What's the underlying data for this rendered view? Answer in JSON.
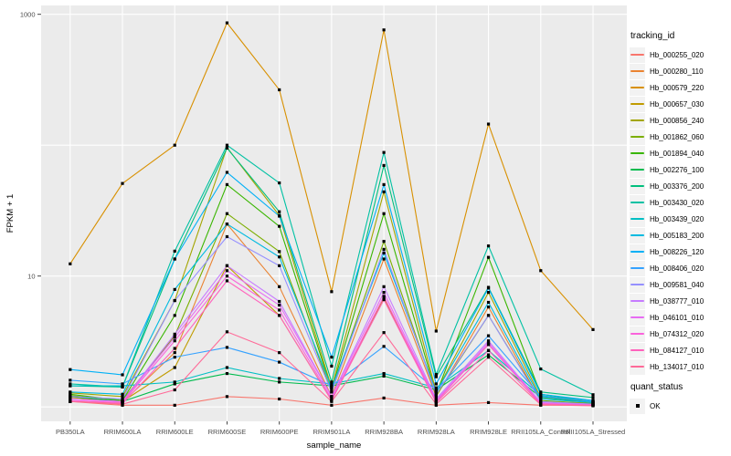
{
  "figure": {
    "panel_background": "#EBEBEB",
    "gridline_color": "#FFFFFF",
    "tick_color": "#333333",
    "tick_label_color": "#4D4D4D",
    "axis_title_color": "#000000",
    "point_color": "#000000"
  },
  "axes": {
    "x_title": "sample_name",
    "y_title": "FPKM + 1"
  },
  "legend": {
    "tracking_title": "tracking_id",
    "quant_title": "quant_status",
    "quant_ok_label": "OK"
  },
  "chart_data": {
    "type": "line",
    "title": "",
    "xlabel": "sample_name",
    "ylabel": "FPKM + 1",
    "yscale": "log10",
    "ylim": [
      0.8,
      1170
    ],
    "y_tick_labels": [
      "1000",
      "10"
    ],
    "y_tick_values": [
      1000,
      10
    ],
    "y_gridline_values": [
      1,
      10,
      100,
      1000
    ],
    "grid": true,
    "legend_position": "right",
    "point_marker": "black-square",
    "quant_status": "OK",
    "categories": [
      "PB350LA",
      "RRIM600LA",
      "RRIM600LE",
      "RRIM600SE",
      "RRIM600PE",
      "RRIM901LA",
      "RRIM928BA",
      "RRIM928LA",
      "RRIM928LE",
      "RRII105LA_Control",
      "RRII105LA_Stressed"
    ],
    "series": [
      {
        "name": "Hb_000255_020",
        "color": "#F8766D",
        "values": [
          1.1,
          1.03,
          1.03,
          1.2,
          1.15,
          1.03,
          1.17,
          1.03,
          1.08,
          1.03,
          1.03
        ]
      },
      {
        "name": "Hb_000280_110",
        "color": "#EA8331",
        "values": [
          1.1,
          1.08,
          2.6,
          25,
          8.3,
          1.2,
          13.5,
          1.2,
          5.8,
          1.1,
          1.07
        ]
      },
      {
        "name": "Hb_000579_220",
        "color": "#D89000",
        "values": [
          12.4,
          51,
          100,
          860,
          265,
          7.6,
          760,
          3.8,
          145,
          11,
          3.9
        ]
      },
      {
        "name": "Hb_000657_030",
        "color": "#C09B00",
        "values": [
          1.18,
          1.1,
          2.0,
          12,
          5.0,
          1.12,
          6.8,
          1.1,
          3.0,
          1.06,
          1.04
        ]
      },
      {
        "name": "Hb_000856_240",
        "color": "#A3A500",
        "values": [
          1.28,
          1.2,
          6.5,
          96,
          29,
          1.4,
          44,
          1.3,
          7.5,
          1.18,
          1.1
        ]
      },
      {
        "name": "Hb_001862_060",
        "color": "#7CAE00",
        "values": [
          1.22,
          1.12,
          3.5,
          30,
          15.4,
          1.3,
          18.4,
          1.22,
          5.0,
          1.12,
          1.06
        ]
      },
      {
        "name": "Hb_001894_040",
        "color": "#39B600",
        "values": [
          1.25,
          1.12,
          5.0,
          50,
          24,
          1.35,
          30,
          1.25,
          13.9,
          1.25,
          1.1
        ]
      },
      {
        "name": "Hb_002276_100",
        "color": "#00BB4E",
        "values": [
          1.2,
          1.1,
          1.5,
          1.8,
          1.55,
          1.45,
          1.72,
          1.35,
          2.5,
          1.18,
          1.08
        ]
      },
      {
        "name": "Hb_003376_200",
        "color": "#00BF7D",
        "values": [
          1.45,
          1.42,
          13.5,
          95,
          31,
          1.55,
          70,
          1.7,
          8.2,
          1.3,
          1.18
        ]
      },
      {
        "name": "Hb_003430_020",
        "color": "#00C1A3",
        "values": [
          1.5,
          1.42,
          15.5,
          100,
          51.5,
          2.05,
          88,
          1.77,
          17,
          1.95,
          1.24
        ]
      },
      {
        "name": "Hb_003439_020",
        "color": "#00BFC4",
        "values": [
          1.45,
          1.45,
          1.55,
          2.0,
          1.65,
          1.5,
          1.8,
          1.4,
          2.7,
          1.22,
          1.1
        ]
      },
      {
        "name": "Hb_005183_200",
        "color": "#00BAE0",
        "values": [
          1.3,
          1.25,
          7.9,
          25,
          14,
          1.4,
          15,
          1.3,
          6.3,
          1.15,
          1.08
        ]
      },
      {
        "name": "Hb_008226_120",
        "color": "#00B0F6",
        "values": [
          1.93,
          1.76,
          13.5,
          62,
          28.7,
          2.4,
          50,
          1.5,
          8.1,
          1.25,
          1.12
        ]
      },
      {
        "name": "Hb_008406_020",
        "color": "#35A2FF",
        "values": [
          1.6,
          1.5,
          2.4,
          2.85,
          2.2,
          1.45,
          2.9,
          1.35,
          3.5,
          1.2,
          1.1
        ]
      },
      {
        "name": "Hb_009581_040",
        "color": "#9590FF",
        "values": [
          1.2,
          1.15,
          6.5,
          20,
          12,
          1.3,
          16,
          1.25,
          5.0,
          1.1,
          1.05
        ]
      },
      {
        "name": "Hb_038777_010",
        "color": "#C77CFF",
        "values": [
          1.15,
          1.1,
          3.6,
          12,
          6.4,
          1.2,
          8.3,
          1.15,
          3.2,
          1.08,
          1.04
        ]
      },
      {
        "name": "Hb_046101_010",
        "color": "#E76BF3",
        "values": [
          1.15,
          1.1,
          3.4,
          11,
          6.0,
          1.2,
          7.5,
          1.12,
          3.1,
          1.07,
          1.04
        ]
      },
      {
        "name": "Hb_074312_020",
        "color": "#FA62DB",
        "values": [
          1.12,
          1.08,
          3.2,
          10,
          5.5,
          1.15,
          7.0,
          1.1,
          3.0,
          1.06,
          1.03
        ]
      },
      {
        "name": "Hb_084127_010",
        "color": "#FF62BC",
        "values": [
          1.1,
          1.06,
          2.8,
          9.2,
          5.0,
          1.12,
          6.6,
          1.08,
          2.7,
          1.05,
          1.03
        ]
      },
      {
        "name": "Hb_134017_010",
        "color": "#FF6A98",
        "values": [
          1.1,
          1.05,
          1.35,
          3.75,
          2.6,
          1.1,
          3.7,
          1.05,
          2.4,
          1.04,
          1.02
        ]
      }
    ]
  }
}
